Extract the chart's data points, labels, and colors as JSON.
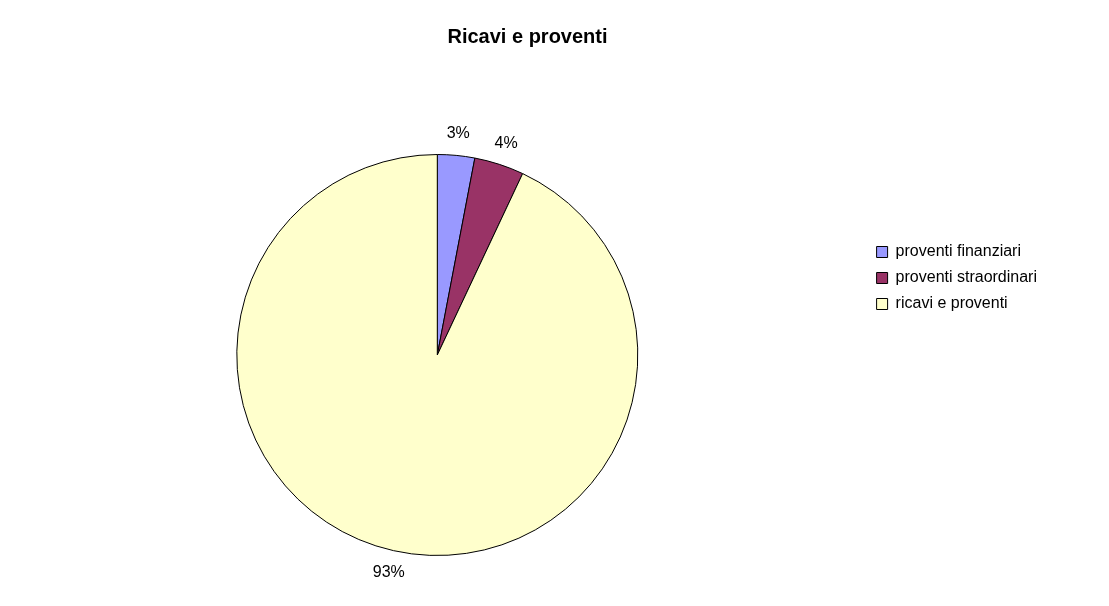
{
  "chart_data": {
    "type": "pie",
    "title": "Ricavi e proventi",
    "categories": [
      "proventi finanziari",
      "proventi straordinari",
      "ricavi e proventi"
    ],
    "values": [
      3,
      4,
      93
    ],
    "colors": [
      "#9999ff",
      "#993366",
      "#ffffcc"
    ],
    "legend": "right",
    "value_labels": [
      "3%",
      "4%",
      "93%"
    ]
  }
}
